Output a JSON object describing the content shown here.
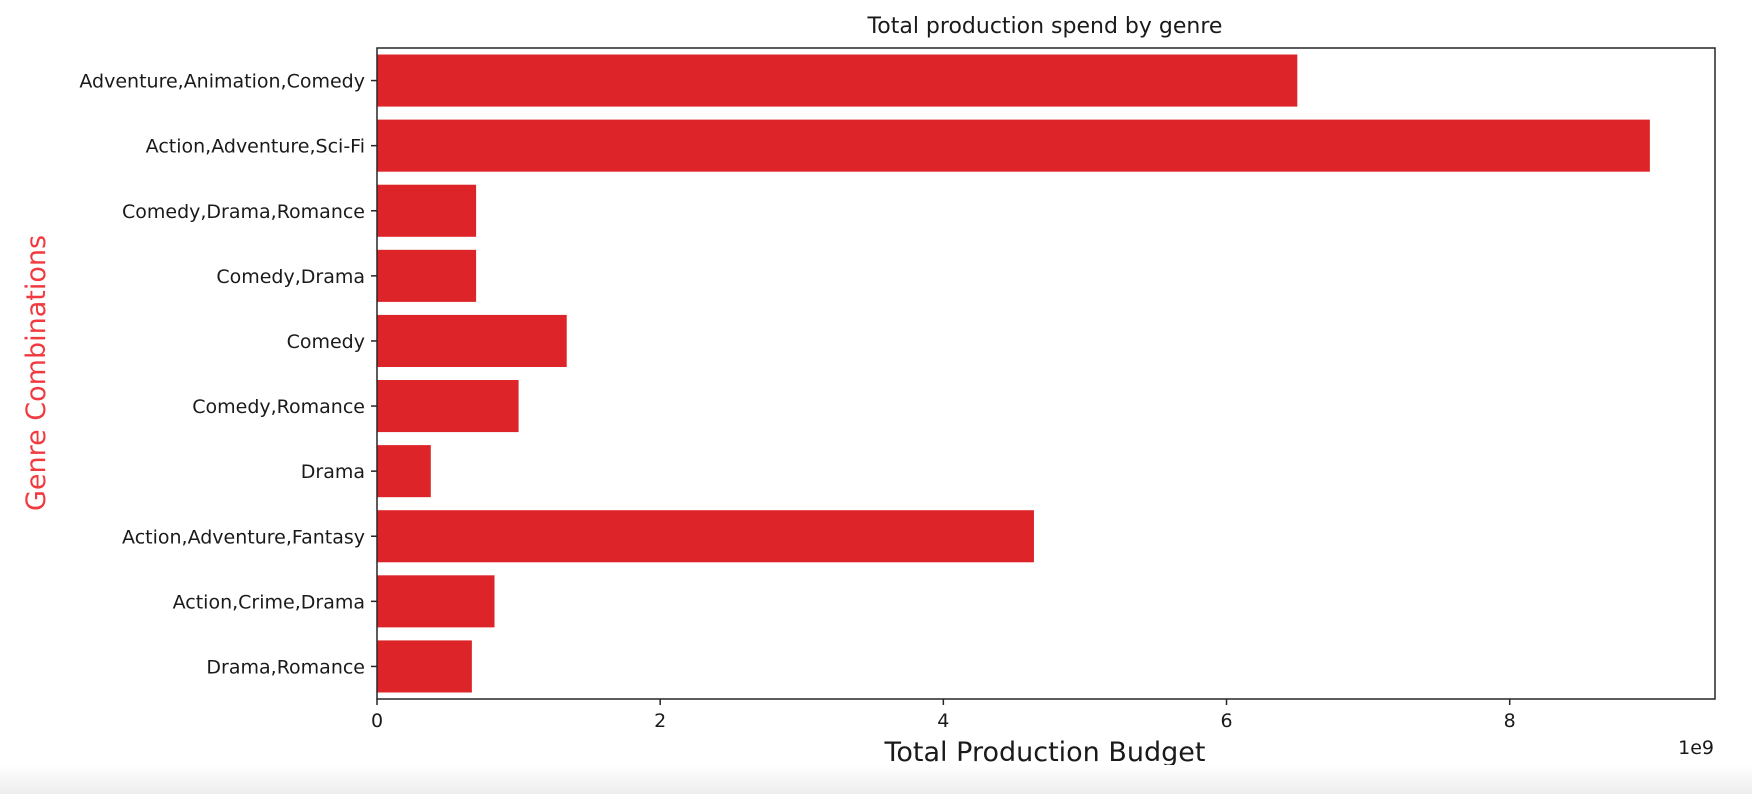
{
  "chart_data": {
    "type": "bar",
    "orientation": "horizontal",
    "title": "Total production spend by genre",
    "xlabel": "Total Production Budget",
    "ylabel": "Genre Combinations",
    "x_offset_text": "1e9",
    "xlim": [
      0,
      9.45
    ],
    "x_ticks": [
      0,
      2,
      4,
      6,
      8
    ],
    "x_tick_labels": [
      "0",
      "2",
      "4",
      "6",
      "8"
    ],
    "grid": false,
    "bar_color": "#dd2529",
    "ylabel_color": "#f03a3f",
    "categories": [
      "Adventure,Animation,Comedy",
      "Action,Adventure,Sci-Fi",
      "Comedy,Drama,Romance",
      "Comedy,Drama",
      "Comedy",
      "Comedy,Romance",
      "Drama",
      "Action,Adventure,Fantasy",
      "Action,Crime,Drama",
      "Drama,Romance"
    ],
    "values": [
      6.5,
      8.99,
      0.7,
      0.7,
      1.34,
      1.0,
      0.38,
      4.64,
      0.83,
      0.67
    ]
  }
}
